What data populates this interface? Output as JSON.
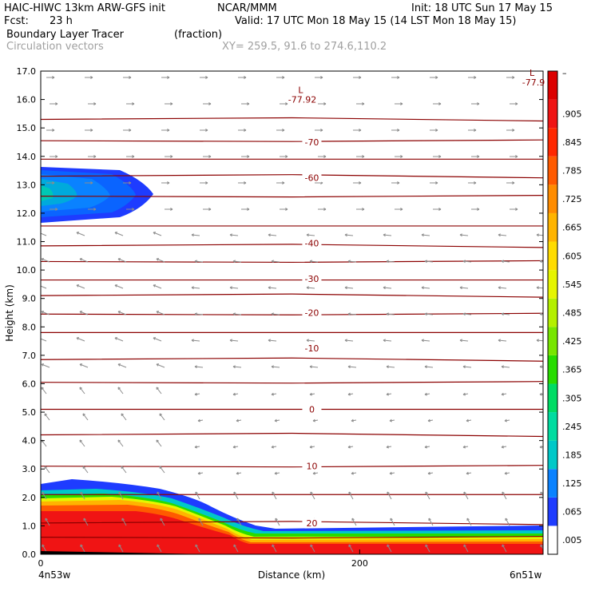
{
  "header": {
    "line1_left": "HAIC-HIWC 13km ARW-GFS init",
    "line1_mid": "NCAR/MMM",
    "line1_right": "Init: 18 UTC Sun 17 May 15",
    "line2_left": "Fcst:",
    "line2_fcst": "23 h",
    "line2_right": "Valid: 17 UTC Mon 18 May 15 (14 LST Mon 18 May 15)",
    "line3_left": "Boundary Layer Tracer",
    "line3_mid": "(fraction)",
    "line4_left": "Circulation vectors",
    "line4_mid": "XY= 259.5, 91.6 to 274.6,110.2"
  },
  "chart_data": {
    "type": "heatmap",
    "xlabel": "Distance (km)",
    "ylabel": "Height (km)",
    "x_left_label": "4n53w",
    "x_right_label": "6n51w",
    "xlim": [
      0,
      315
    ],
    "x_ticks": [
      0,
      200
    ],
    "ylim": [
      0,
      17
    ],
    "y_ticks": [
      0.0,
      1.0,
      2.0,
      3.0,
      4.0,
      5.0,
      6.0,
      7.0,
      8.0,
      9.0,
      10.0,
      11.0,
      12.0,
      13.0,
      14.0,
      15.0,
      16.0,
      17.0
    ],
    "colorbar": {
      "labels": [
        ".005",
        ".065",
        ".125",
        ".185",
        ".245",
        ".305",
        ".365",
        ".425",
        ".485",
        ".545",
        ".605",
        ".665",
        ".725",
        ".785",
        ".845",
        ".905"
      ],
      "colors": [
        "#ffffff",
        "#1e3cff",
        "#0a82ff",
        "#00c8c8",
        "#00dca0",
        "#00dc64",
        "#28dc00",
        "#78e600",
        "#b4f000",
        "#e6f500",
        "#ffdc00",
        "#ffb400",
        "#ff8c00",
        "#ff5a00",
        "#ff2800",
        "#f01414",
        "#dc0000"
      ]
    },
    "isotherms": [
      {
        "label": "-70",
        "x": 170,
        "y": 14.5
      },
      {
        "label": "-60",
        "x": 170,
        "y": 13.25
      },
      {
        "label": "-40",
        "x": 170,
        "y": 10.95
      },
      {
        "label": "-30",
        "x": 170,
        "y": 9.7
      },
      {
        "label": "-20",
        "x": 170,
        "y": 8.5
      },
      {
        "label": "-10",
        "x": 170,
        "y": 7.25
      },
      {
        "label": "0",
        "x": 170,
        "y": 5.1
      },
      {
        "label": "10",
        "x": 170,
        "y": 3.1
      },
      {
        "label": "20",
        "x": 170,
        "y": 1.1
      }
    ],
    "temperature_lines_km": [
      15.3,
      14.55,
      13.9,
      13.3,
      12.6,
      11.55,
      10.85,
      10.3,
      9.65,
      9.1,
      8.45,
      7.8,
      6.85,
      6.05,
      5.1,
      4.2,
      3.1,
      2.1,
      1.1,
      0.6
    ],
    "lows": [
      {
        "label": "L",
        "value": "-77.92",
        "x": 163,
        "y": 16.0
      },
      {
        "label": "L",
        "value": "-77.9",
        "x": 308,
        "y": 16.6
      }
    ]
  }
}
